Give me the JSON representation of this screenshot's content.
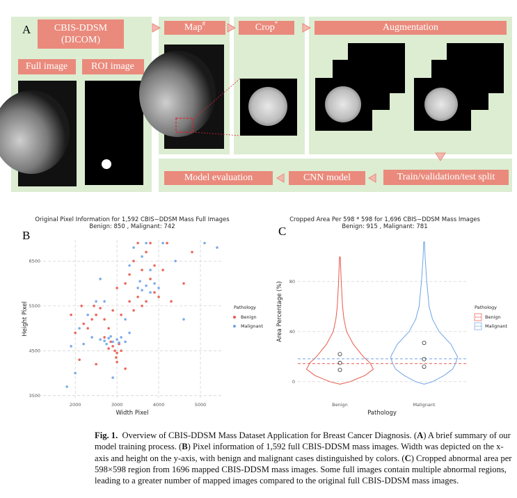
{
  "figure_a": {
    "label": "A",
    "source": [
      "CBIS-DDSM",
      "(DICOM)"
    ],
    "full_image": "Full image",
    "roi_image": "ROI image",
    "map": {
      "text": "Map",
      "sup": "#"
    },
    "crop": {
      "text": "Crop",
      "sup": "*"
    },
    "augmentation": "Augmentation",
    "split": "Train/validation/test split",
    "cnn": "CNN model",
    "evaluation": "Model evaluation"
  },
  "chart_data": [
    {
      "type": "scatter",
      "panel": "B",
      "title": "Original Pixel Information for 1,592 CBIS−DDSM Mass Full Images",
      "subtitle": "Benign: 850 , Malignant: 742",
      "x_label": "Width Pixel",
      "y_label": "Height Pixel",
      "legend_title": "Pathology",
      "xlim": [
        1230,
        5500
      ],
      "ylim": [
        3450,
        6970
      ],
      "xticks": [
        2000,
        3000,
        4000,
        5000
      ],
      "yticks": [
        3500,
        4500,
        5500,
        6500
      ],
      "grid": true,
      "series": [
        {
          "name": "Benign",
          "color": "#e8584a",
          "x": [
            2900,
            2950,
            3000,
            2850,
            3050,
            2980,
            3100,
            2800,
            2700,
            3000,
            2300,
            2400,
            2500,
            2200,
            2600,
            2700,
            2450,
            2900,
            3100,
            2000,
            1900,
            2150,
            3300,
            3500,
            3700,
            3900,
            3800,
            4000,
            3600,
            3400,
            3500,
            3800,
            4200,
            3300,
            3700,
            3900,
            3200,
            4100,
            3600,
            3000,
            2500,
            3200,
            4300,
            4600,
            2800,
            2100,
            4800,
            3400
          ],
          "y": [
            4600,
            4500,
            4450,
            4700,
            4650,
            4350,
            4500,
            4550,
            4800,
            4250,
            5000,
            5200,
            5300,
            5100,
            5450,
            5200,
            5500,
            5400,
            5300,
            4900,
            5300,
            5500,
            5600,
            5700,
            5600,
            5800,
            6100,
            5700,
            6300,
            6500,
            6900,
            6900,
            6900,
            6200,
            6700,
            6400,
            6000,
            6300,
            5500,
            5900,
            4200,
            4100,
            5600,
            6000,
            5000,
            4300,
            6700,
            5400
          ]
        },
        {
          "name": "Malignant",
          "color": "#6fa3e6",
          "x": [
            2600,
            2700,
            2800,
            2900,
            3000,
            3100,
            3200,
            2750,
            2850,
            3050,
            2400,
            2200,
            3300,
            3500,
            3600,
            3700,
            3800,
            3900,
            3550,
            4000,
            3300,
            3600,
            3700,
            4100,
            3400,
            2500,
            2300,
            2100,
            1900,
            2000,
            1800,
            2900,
            2600,
            4400,
            5100,
            5400,
            4600,
            3200,
            2700,
            3800
          ],
          "y": [
            4750,
            4720,
            4780,
            4700,
            4750,
            4800,
            4700,
            4650,
            4820,
            4680,
            4800,
            4650,
            4900,
            5900,
            5850,
            5950,
            5800,
            6000,
            6050,
            5900,
            6400,
            6600,
            6900,
            6900,
            6800,
            5600,
            5300,
            5000,
            4600,
            4000,
            3700,
            3900,
            6100,
            6500,
            6900,
            6800,
            5200,
            5200,
            5600,
            6300
          ]
        }
      ]
    },
    {
      "type": "violin",
      "panel": "C",
      "title": "Cropped Area Per 598 * 598 for 1,696  CBIS−DDSM Mass Images",
      "subtitle": "Benign:  915 , Malignant:  781",
      "x_label": "Pathology",
      "y_label": "Area Percentage (%)",
      "legend_title": "Pathology",
      "categories": [
        "Benign",
        "Malignant"
      ],
      "ylim": [
        -4,
        116
      ],
      "yticks": [
        0,
        40,
        80
      ],
      "grid": true,
      "series": [
        {
          "name": "Benign",
          "color": "#e8584a",
          "y": [
            -2,
            0,
            5,
            10,
            15,
            20,
            30,
            40,
            50,
            60,
            80,
            100
          ],
          "density": [
            0,
            0.3,
            0.75,
            1,
            0.9,
            0.7,
            0.4,
            0.2,
            0.12,
            0.08,
            0.04,
            0.01
          ],
          "quartiles": [
            9.5,
            15,
            22
          ],
          "mean": 14.5
        },
        {
          "name": "Malignant",
          "color": "#6fa3e6",
          "y": [
            -2,
            0,
            5,
            10,
            15,
            20,
            30,
            40,
            50,
            60,
            80,
            100,
            112
          ],
          "density": [
            0,
            0.25,
            0.6,
            0.85,
            0.95,
            1,
            0.8,
            0.45,
            0.25,
            0.15,
            0.08,
            0.03,
            0.01
          ],
          "quartiles": [
            12,
            18,
            31
          ],
          "mean": 18.3
        }
      ]
    }
  ],
  "caption": [
    {
      "text": "Fig. 1.",
      "bold": true
    },
    {
      "text": "  Overview of CBIS-DDSM Mass Dataset Application for Breast Cancer Diagnosis. (",
      "bold": false
    },
    {
      "text": "A",
      "bold": true
    },
    {
      "text": ") A brief summary of our model training process. (",
      "bold": false
    },
    {
      "text": "B",
      "bold": true
    },
    {
      "text": ") Pixel information of 1,592 full CBIS-DDSM mass images. Width was depicted on the x-axis and height on the y-axis, with benign and malignant cases distinguished by colors. (",
      "bold": false
    },
    {
      "text": "C",
      "bold": true
    },
    {
      "text": ") Cropped abnormal area per 598×598 region from 1696 mapped CBIS-DDSM mass images. Some full images contain multiple abnormal regions, leading to a greater number of mapped images compared to the original full CBIS-DDSM mass images.",
      "bold": false
    }
  ]
}
